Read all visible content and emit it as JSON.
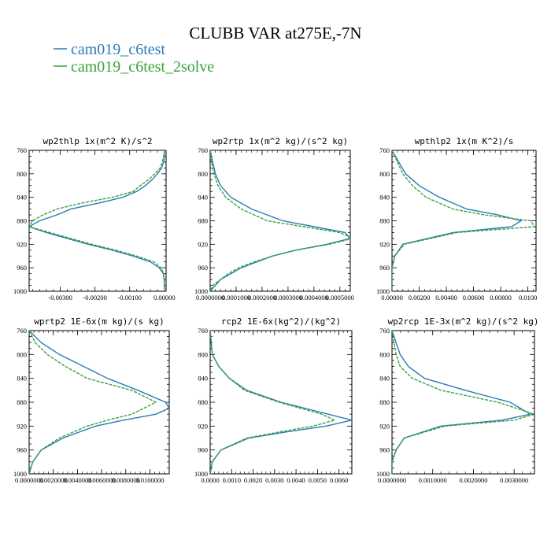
{
  "figure": {
    "title": "CLUBB VAR at275E,-7N",
    "legend": [
      {
        "label": "cam019_c6test",
        "color": "#2b7bba"
      },
      {
        "label": "cam019_c6test_2solve",
        "color": "#3aa23a"
      }
    ]
  },
  "chart_data": [
    {
      "type": "line",
      "title": "wp2thlp   1x(m^2 K)/s^2",
      "xlim": [
        -0.0039,
        5e-05
      ],
      "ylim": [
        760,
        1000
      ],
      "yticks": [
        "760",
        "800",
        "840",
        "880",
        "920",
        "960",
        "1000"
      ],
      "ytick_values": [
        760,
        800,
        840,
        880,
        920,
        960,
        1000
      ],
      "xticks": [
        "-0.00300",
        "-0.00200",
        "-0.00100",
        "0.00000"
      ],
      "xtick_values": [
        -0.003,
        -0.002,
        -0.001,
        0
      ],
      "y": [
        760,
        770,
        780,
        790,
        800,
        810,
        820,
        830,
        840,
        850,
        860,
        870,
        880,
        890,
        900,
        910,
        920,
        930,
        940,
        950,
        960,
        970,
        980,
        990,
        1000
      ],
      "series": [
        {
          "name": "cam019_c6test",
          "values": [
            0,
            0,
            -2e-05,
            -8e-05,
            -0.0002,
            -0.00035,
            -0.00055,
            -0.0008,
            -0.0012,
            -0.0019,
            -0.0027,
            -0.0031,
            -0.0036,
            -0.0039,
            -0.0034,
            -0.0028,
            -0.0022,
            -0.0015,
            -0.0009,
            -0.0004,
            -0.00015,
            -3e-05,
            -1e-05,
            0,
            0
          ]
        },
        {
          "name": "cam019_c6test_2solve",
          "values": [
            0,
            -2e-05,
            -6e-05,
            -0.00012,
            -0.00028,
            -0.00045,
            -0.0007,
            -0.0009,
            -0.0015,
            -0.0024,
            -0.0031,
            -0.0035,
            -0.0038,
            -0.0039,
            -0.0033,
            -0.0027,
            -0.0021,
            -0.0014,
            -0.0008,
            -0.0003,
            -0.0001,
            -2e-05,
            0,
            0,
            0
          ]
        }
      ]
    },
    {
      "type": "line",
      "title": "wp2rtp   1x(m^2 kg)/(s^2 kg)",
      "xlim": [
        0,
        0.00054
      ],
      "ylim": [
        760,
        1000
      ],
      "yticks": [
        "760",
        "800",
        "840",
        "880",
        "920",
        "960",
        "1000"
      ],
      "ytick_values": [
        760,
        800,
        840,
        880,
        920,
        960,
        1000
      ],
      "xticks": [
        "0.0000000",
        "0.0001000",
        "0.0002000",
        "0.0003000",
        "0.0004000",
        "0.0005000"
      ],
      "xtick_values": [
        0,
        0.0001,
        0.0002,
        0.0003,
        0.0004,
        0.0005
      ],
      "y": [
        760,
        780,
        800,
        820,
        840,
        860,
        880,
        890,
        900,
        910,
        920,
        930,
        940,
        950,
        960,
        970,
        980,
        990,
        1000
      ],
      "series": [
        {
          "name": "cam019_c6test",
          "values": [
            0,
            1e-05,
            2e-05,
            4e-05,
            8e-05,
            0.00016,
            0.00028,
            0.0004,
            0.00052,
            0.00054,
            0.00045,
            0.00033,
            0.00024,
            0.00018,
            0.00012,
            8e-05,
            4e-05,
            2e-05,
            0
          ]
        },
        {
          "name": "cam019_c6test_2solve",
          "values": [
            0,
            5e-06,
            1.5e-05,
            3e-05,
            6e-05,
            0.00012,
            0.00022,
            0.00036,
            0.0005,
            0.00055,
            0.00046,
            0.00033,
            0.00024,
            0.00017,
            0.00011,
            7e-05,
            4e-05,
            1e-05,
            0
          ]
        }
      ]
    },
    {
      "type": "line",
      "title": "wpthlp2   1x(m K^2)/s",
      "xlim": [
        0,
        0.0106
      ],
      "ylim": [
        760,
        1000
      ],
      "yticks": [
        "760",
        "800",
        "840",
        "880",
        "920",
        "960",
        "1000"
      ],
      "ytick_values": [
        760,
        800,
        840,
        880,
        920,
        960,
        1000
      ],
      "xticks": [
        "0.00000",
        "0.00200",
        "0.00400",
        "0.00600",
        "0.00800",
        "0.0100"
      ],
      "xtick_values": [
        0,
        0.002,
        0.004,
        0.006,
        0.008,
        0.01
      ],
      "y": [
        760,
        780,
        800,
        820,
        840,
        860,
        870,
        880,
        890,
        900,
        920,
        940,
        960,
        980,
        1000
      ],
      "series": [
        {
          "name": "cam019_c6test",
          "values": [
            0,
            0.0005,
            0.001,
            0.002,
            0.0035,
            0.0055,
            0.0078,
            0.0095,
            0.0088,
            0.0045,
            0.0008,
            0.0002,
            0,
            0,
            0
          ]
        },
        {
          "name": "cam019_c6test_2solve",
          "values": [
            0,
            0.0004,
            0.0008,
            0.0015,
            0.0025,
            0.0045,
            0.0068,
            0.0102,
            0.0105,
            0.0048,
            0.0009,
            0.0002,
            0,
            0,
            0
          ]
        }
      ]
    },
    {
      "type": "line",
      "title": "wprtp2   1E-6x(m kg)/(s kg)",
      "xlim": [
        0,
        0.0116
      ],
      "ylim": [
        760,
        1000
      ],
      "yticks": [
        "760",
        "800",
        "840",
        "880",
        "920",
        "960",
        "1000"
      ],
      "ytick_values": [
        760,
        800,
        840,
        880,
        920,
        960,
        1000
      ],
      "xticks": [
        "0.0000000",
        "0.0020000",
        "0.0040000",
        "0.0060000",
        "0.0080000",
        "0.0100000"
      ],
      "xtick_values": [
        0,
        0.002,
        0.004,
        0.006,
        0.008,
        0.01
      ],
      "y": [
        760,
        780,
        800,
        820,
        840,
        860,
        880,
        890,
        900,
        910,
        920,
        940,
        960,
        980,
        1000
      ],
      "series": [
        {
          "name": "cam019_c6test",
          "values": [
            0,
            0.001,
            0.0025,
            0.0045,
            0.0065,
            0.009,
            0.0113,
            0.0116,
            0.0105,
            0.0078,
            0.0055,
            0.0028,
            0.001,
            0.0003,
            0
          ]
        },
        {
          "name": "cam019_c6test_2solve",
          "values": [
            0,
            0.0005,
            0.0015,
            0.003,
            0.0048,
            0.0085,
            0.0105,
            0.0095,
            0.0085,
            0.0065,
            0.0048,
            0.0025,
            0.001,
            0.0003,
            0
          ]
        }
      ]
    },
    {
      "type": "line",
      "title": "rcp2   1E-6x(kg^2)/(kg^2)",
      "xlim": [
        0,
        0.0066
      ],
      "ylim": [
        760,
        1000
      ],
      "yticks": [
        "760",
        "800",
        "840",
        "880",
        "920",
        "960",
        "1000"
      ],
      "ytick_values": [
        760,
        800,
        840,
        880,
        920,
        960,
        1000
      ],
      "xticks": [
        "0.0000",
        "0.0010",
        "0.0020",
        "0.0030",
        "0.0040",
        "0.0050",
        "0.0060"
      ],
      "xtick_values": [
        0,
        0.001,
        0.002,
        0.003,
        0.004,
        0.005,
        0.006
      ],
      "y": [
        760,
        800,
        820,
        840,
        860,
        880,
        900,
        910,
        920,
        930,
        940,
        960,
        980,
        1000
      ],
      "series": [
        {
          "name": "cam019_c6test",
          "values": [
            0,
            0.0001,
            0.0004,
            0.0009,
            0.0017,
            0.0033,
            0.0055,
            0.0066,
            0.0054,
            0.0035,
            0.0018,
            0.0005,
            0.0001,
            0
          ]
        },
        {
          "name": "cam019_c6test_2solve",
          "values": [
            0,
            0.0001,
            0.0004,
            0.0009,
            0.0016,
            0.0032,
            0.0052,
            0.0058,
            0.0048,
            0.0032,
            0.0017,
            0.0005,
            0.0001,
            0
          ]
        }
      ]
    },
    {
      "type": "line",
      "title": "wp2rcp   1E-3x(m^2 kg)/(s^2 kg)",
      "xlim": [
        0,
        0.0035
      ],
      "ylim": [
        760,
        1000
      ],
      "yticks": [
        "760",
        "800",
        "840",
        "880",
        "920",
        "960",
        "1000"
      ],
      "ytick_values": [
        760,
        800,
        840,
        880,
        920,
        960,
        1000
      ],
      "xticks": [
        "0.0000000",
        "0.0010000",
        "0.0020000",
        "0.0030000"
      ],
      "xtick_values": [
        0,
        0.001,
        0.002,
        0.003
      ],
      "y": [
        760,
        780,
        800,
        820,
        840,
        860,
        880,
        900,
        910,
        920,
        940,
        960,
        980,
        1000
      ],
      "series": [
        {
          "name": "cam019_c6test",
          "values": [
            0,
            0.0001,
            0.0002,
            0.0004,
            0.0008,
            0.0018,
            0.0029,
            0.0034,
            0.0027,
            0.0012,
            0.0003,
            0.0001,
            0,
            0
          ]
        },
        {
          "name": "cam019_c6test_2solve",
          "values": [
            0,
            5e-05,
            0.0001,
            0.0002,
            0.0005,
            0.0012,
            0.0026,
            0.0035,
            0.003,
            0.0013,
            0.0003,
            0.0001,
            0,
            0
          ]
        }
      ]
    }
  ]
}
